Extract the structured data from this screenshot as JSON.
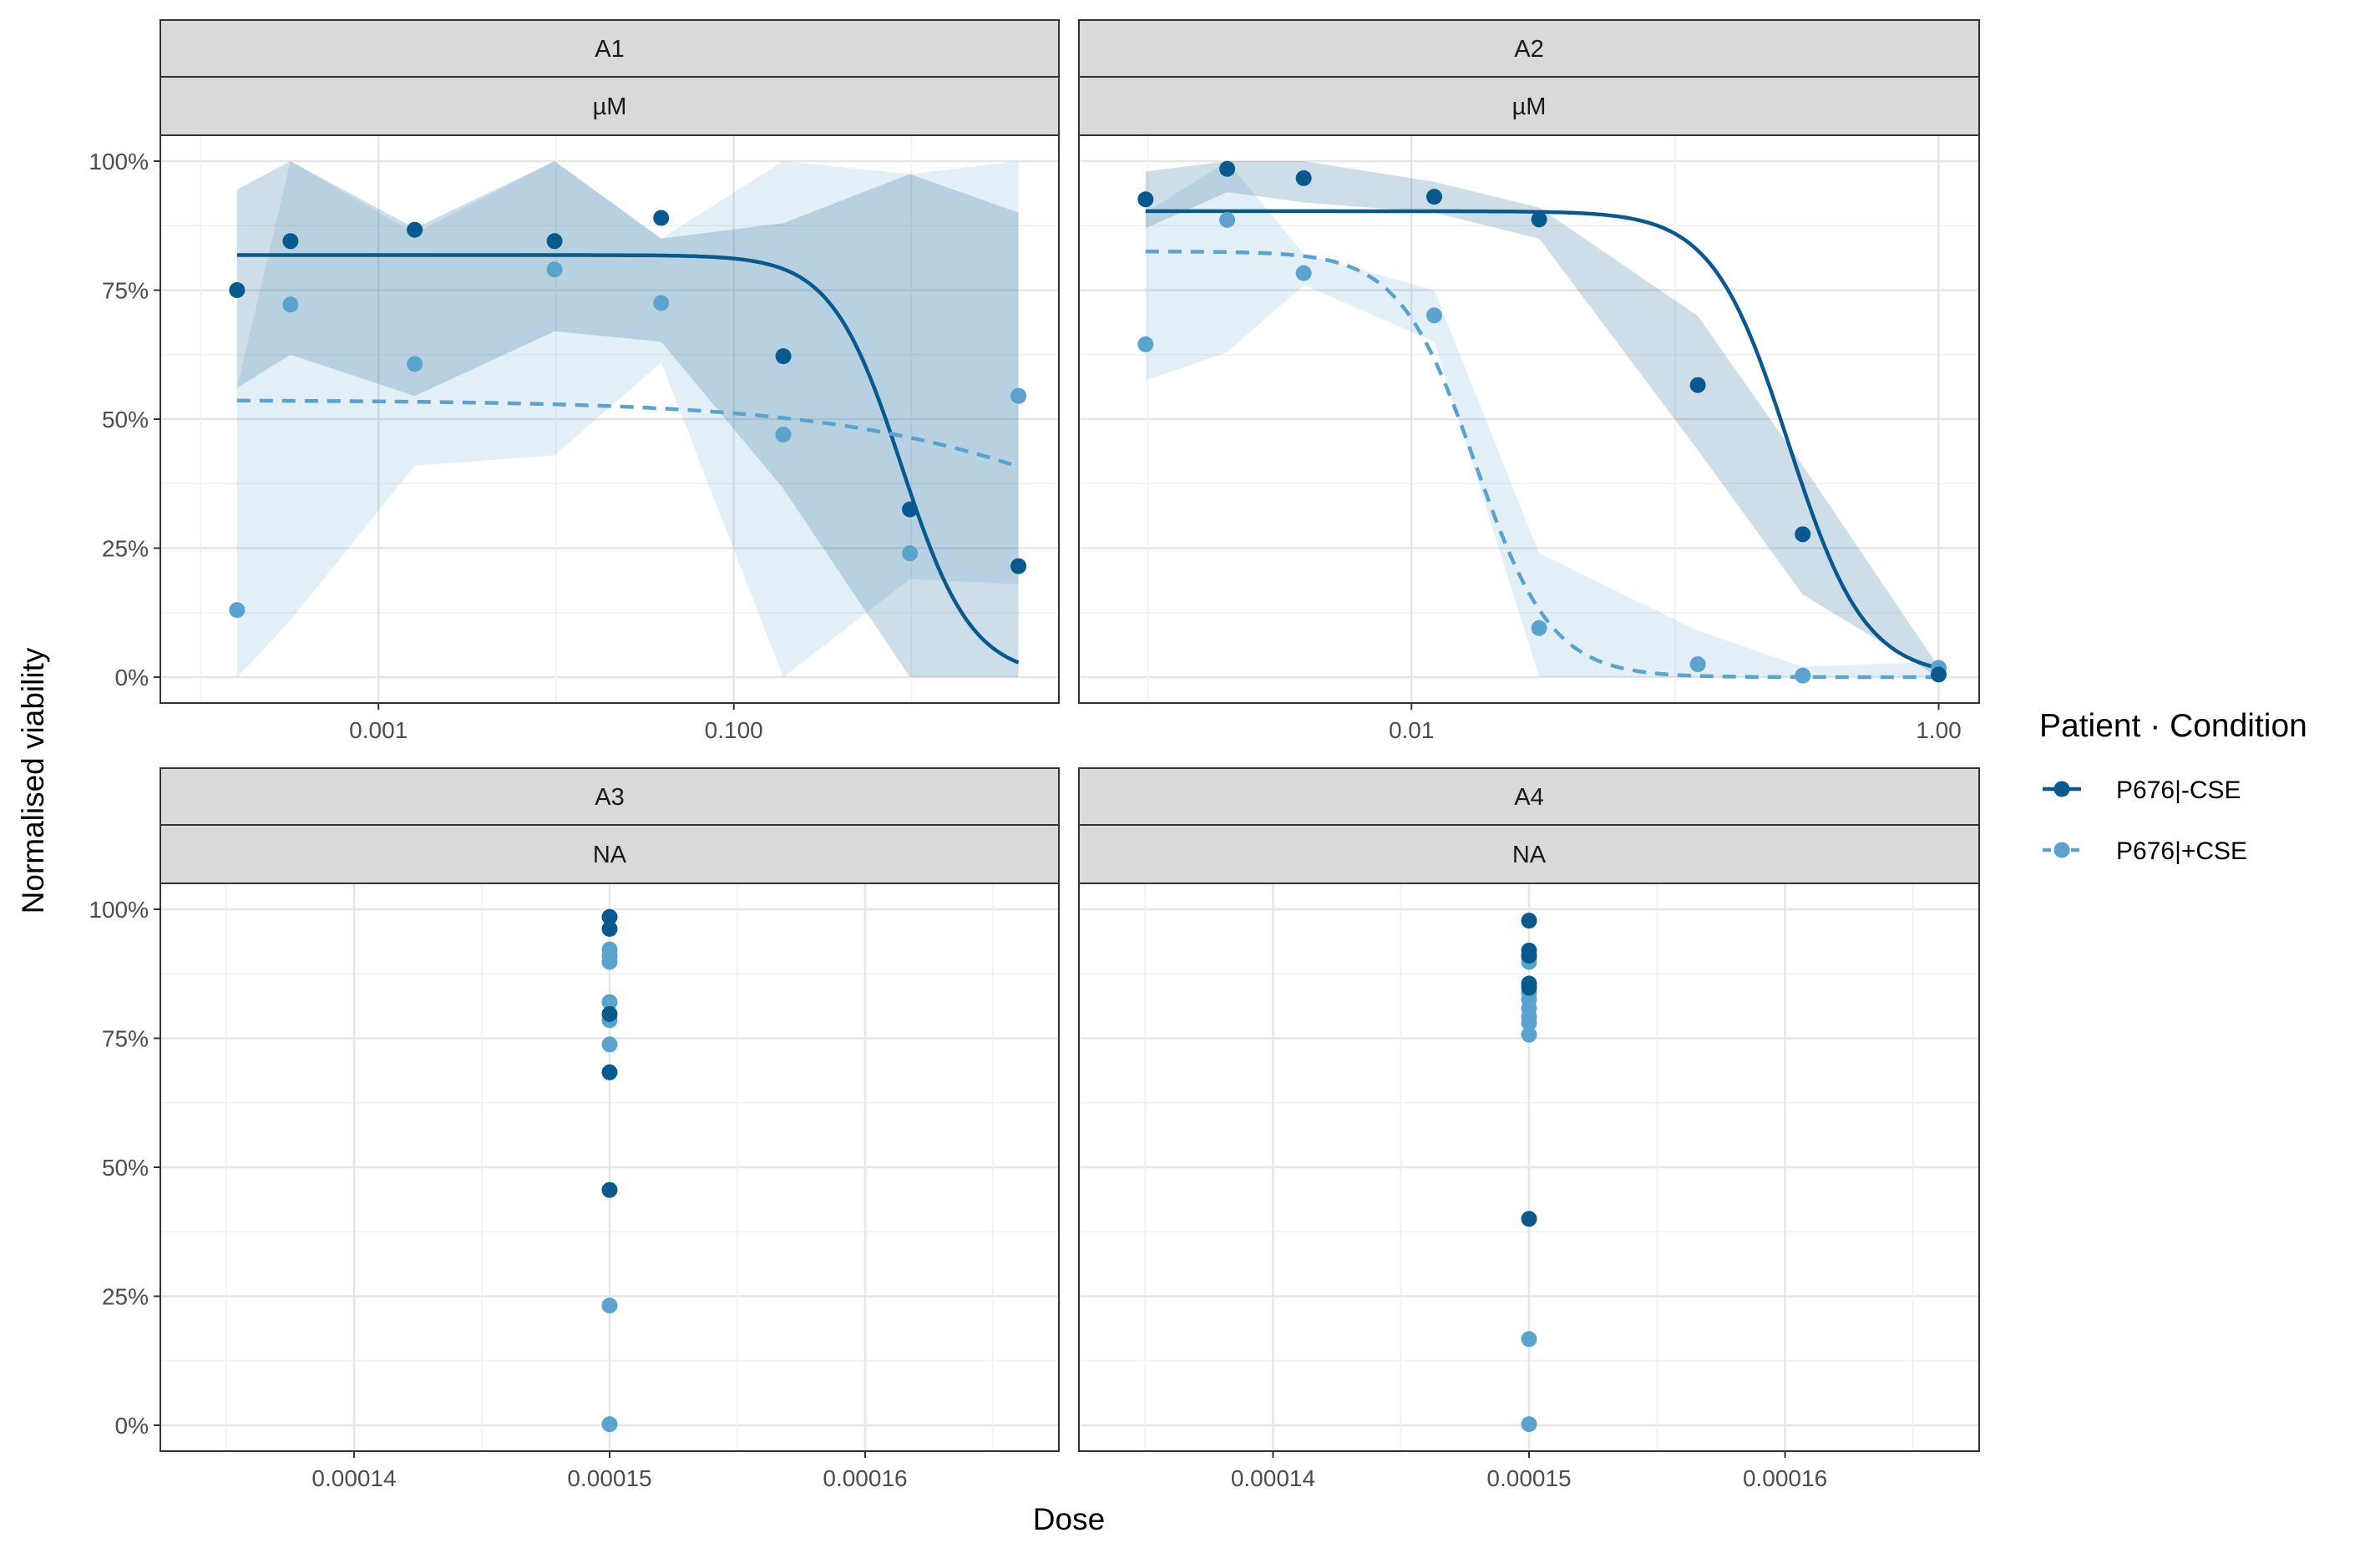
{
  "chart_data": {
    "type": "scatter",
    "xlabel": "Dose",
    "ylabel": "Normalised viability",
    "legend": {
      "title": "Patient · Condition",
      "placement": "right",
      "entries": [
        {
          "name": "P676|-CSE",
          "color": "#08598e",
          "linetype": "solid"
        },
        {
          "name": "P676|+CSE",
          "color": "#5aa3cf",
          "linetype": "dashed"
        }
      ]
    },
    "y_ticks": [
      "0%",
      "25%",
      "50%",
      "75%",
      "100%"
    ],
    "ylim": [
      0,
      1
    ],
    "grid": true,
    "panels": [
      {
        "strip": [
          "A1",
          "µM"
        ],
        "x_scale": "log10",
        "xlim": [
          0.0001,
          4.0
        ],
        "x_ticks": [
          {
            "value": 0.001,
            "label": "0.001"
          },
          {
            "value": 0.1,
            "label": "0.100"
          }
        ],
        "series": [
          {
            "name": "P676|-CSE",
            "points": [
              [
                0.00016,
                0.75
              ],
              [
                0.00032,
                0.845
              ],
              [
                0.0016,
                0.867
              ],
              [
                0.0098,
                0.845
              ],
              [
                0.039,
                0.89
              ],
              [
                0.19,
                0.622
              ],
              [
                0.98,
                0.325
              ],
              [
                4.0,
                0.215
              ]
            ],
            "ribbon": [
              [
                0.00016,
                0.56,
                0.945
              ],
              [
                0.00032,
                0.625,
                1.0
              ],
              [
                0.0016,
                0.545,
                0.87
              ],
              [
                0.0098,
                0.67,
                1.0
              ],
              [
                0.039,
                0.65,
                0.85
              ],
              [
                0.19,
                0.365,
                0.88
              ],
              [
                0.98,
                0.0,
                0.975
              ],
              [
                4.0,
                0.0,
                0.9
              ]
            ],
            "fit": {
              "top": 0.818,
              "bottom": 0.0,
              "ic50": 0.88,
              "hill": 2.2
            }
          },
          {
            "name": "P676|+CSE",
            "points": [
              [
                0.00016,
                0.13
              ],
              [
                0.00032,
                0.722
              ],
              [
                0.0016,
                0.607
              ],
              [
                0.0098,
                0.79
              ],
              [
                0.039,
                0.725
              ],
              [
                0.19,
                0.47
              ],
              [
                0.98,
                0.24
              ],
              [
                4.0,
                0.545
              ]
            ],
            "ribbon": [
              [
                0.00016,
                0.0,
                0.56
              ],
              [
                0.00032,
                0.11,
                1.0
              ],
              [
                0.0016,
                0.41,
                0.86
              ],
              [
                0.0098,
                0.43,
                1.0
              ],
              [
                0.039,
                0.61,
                0.85
              ],
              [
                0.19,
                0.0,
                1.0
              ],
              [
                0.98,
                0.19,
                0.975
              ],
              [
                4.0,
                0.18,
                1.0
              ]
            ],
            "fit": {
              "top": 0.537,
              "bottom": 0.0,
              "ic50": 40,
              "hill": 0.5
            }
          }
        ]
      },
      {
        "strip": [
          "A2",
          "µM"
        ],
        "x_scale": "log10",
        "xlim": [
          0.00078,
          1.0
        ],
        "x_ticks": [
          {
            "value": 0.01,
            "label": "0.01"
          },
          {
            "value": 1.0,
            "label": "1.00"
          }
        ],
        "series": [
          {
            "name": "P676|-CSE",
            "points": [
              [
                0.00098,
                0.926
              ],
              [
                0.002,
                0.985
              ],
              [
                0.0039,
                0.967
              ],
              [
                0.0122,
                0.931
              ],
              [
                0.0305,
                0.887
              ],
              [
                0.122,
                0.566
              ],
              [
                0.305,
                0.277
              ],
              [
                1.0,
                0.005
              ]
            ],
            "ribbon": [
              [
                0.00098,
                0.87,
                0.98
              ],
              [
                0.002,
                0.94,
                1.0
              ],
              [
                0.0039,
                0.92,
                1.0
              ],
              [
                0.0122,
                0.9,
                0.96
              ],
              [
                0.0305,
                0.85,
                0.91
              ],
              [
                0.122,
                0.44,
                0.7
              ],
              [
                0.305,
                0.16,
                0.41
              ],
              [
                1.0,
                0.0,
                0.02
              ]
            ],
            "fit": {
              "top": 0.903,
              "bottom": 0.0,
              "ic50": 0.27,
              "hill": 3.0
            }
          },
          {
            "name": "P676|+CSE",
            "points": [
              [
                0.00098,
                0.645
              ],
              [
                0.002,
                0.886
              ],
              [
                0.0039,
                0.783
              ],
              [
                0.0122,
                0.701
              ],
              [
                0.0305,
                0.095
              ],
              [
                0.122,
                0.025
              ],
              [
                0.305,
                0.003
              ],
              [
                1.0,
                0.018
              ]
            ],
            "ribbon": [
              [
                0.00098,
                0.575,
                0.9
              ],
              [
                0.002,
                0.63,
                1.0
              ],
              [
                0.0039,
                0.76,
                0.82
              ],
              [
                0.0122,
                0.65,
                0.75
              ],
              [
                0.0305,
                0.0,
                0.24
              ],
              [
                0.122,
                0.0,
                0.09
              ],
              [
                0.305,
                0.0,
                0.02
              ],
              [
                1.0,
                0.0,
                0.03
              ]
            ],
            "fit": {
              "top": 0.825,
              "bottom": 0.0,
              "ic50": 0.0175,
              "hill": 3.0
            }
          }
        ]
      },
      {
        "strip": [
          "A3",
          "NA"
        ],
        "x_scale": "linear",
        "xlim": [
          0.000134,
          0.000166
        ],
        "x_ticks": [
          {
            "value": 0.00014,
            "label": "0.00014"
          },
          {
            "value": 0.00015,
            "label": "0.00015"
          },
          {
            "value": 0.00016,
            "label": "0.00016"
          }
        ],
        "series": [
          {
            "name": "P676|-CSE",
            "points": [
              [
                0.00015,
                0.985
              ],
              [
                0.00015,
                0.962
              ],
              [
                0.00015,
                0.797
              ],
              [
                0.00015,
                0.684
              ],
              [
                0.00015,
                0.456
              ]
            ]
          },
          {
            "name": "P676|+CSE",
            "points": [
              [
                0.00015,
                0.922
              ],
              [
                0.00015,
                0.91
              ],
              [
                0.00015,
                0.898
              ],
              [
                0.00015,
                0.82
              ],
              [
                0.00015,
                0.785
              ],
              [
                0.00015,
                0.738
              ],
              [
                0.00015,
                0.232
              ],
              [
                0.00015,
                0.002
              ]
            ]
          }
        ]
      },
      {
        "strip": [
          "A4",
          "NA"
        ],
        "x_scale": "linear",
        "xlim": [
          0.000134,
          0.000166
        ],
        "x_ticks": [
          {
            "value": 0.00014,
            "label": "0.00014"
          },
          {
            "value": 0.00015,
            "label": "0.00015"
          },
          {
            "value": 0.00016,
            "label": "0.00016"
          }
        ],
        "series": [
          {
            "name": "P676|-CSE",
            "points": [
              [
                0.00015,
                0.978
              ],
              [
                0.00015,
                0.92
              ],
              [
                0.00015,
                0.91
              ],
              [
                0.00015,
                0.856
              ],
              [
                0.00015,
                0.848
              ],
              [
                0.00015,
                0.4
              ]
            ]
          },
          {
            "name": "P676|+CSE",
            "points": [
              [
                0.00015,
                0.905
              ],
              [
                0.00015,
                0.898
              ],
              [
                0.00015,
                0.838
              ],
              [
                0.00015,
                0.825
              ],
              [
                0.00015,
                0.808
              ],
              [
                0.00015,
                0.792
              ],
              [
                0.00015,
                0.78
              ],
              [
                0.00015,
                0.757
              ],
              [
                0.00015,
                0.167
              ],
              [
                0.00015,
                0.002
              ]
            ]
          }
        ]
      }
    ]
  }
}
